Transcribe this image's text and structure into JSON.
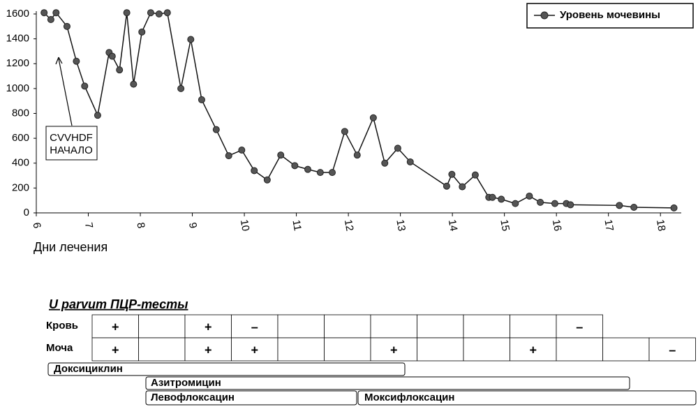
{
  "chart_data": {
    "type": "line",
    "x_label": "Дни лечения",
    "x": [
      6.15,
      6.28,
      6.38,
      6.59,
      6.77,
      6.93,
      7.18,
      7.4,
      7.46,
      7.6,
      7.74,
      7.87,
      8.03,
      8.2,
      8.36,
      8.52,
      8.78,
      8.97,
      9.18,
      9.46,
      9.7,
      9.95,
      10.19,
      10.44,
      10.7,
      10.97,
      11.22,
      11.46,
      11.69,
      11.93,
      12.17,
      12.48,
      12.7,
      12.95,
      13.19,
      13.89,
      13.99,
      14.19,
      14.44,
      14.7,
      14.77,
      14.94,
      15.21,
      15.48,
      15.69,
      15.97,
      16.19,
      16.27,
      17.21,
      17.49,
      18.26
    ],
    "series": [
      {
        "name": "Уровень мочевины",
        "color": "#555555",
        "values": [
          1610,
          1555,
          1610,
          1500,
          1220,
          1020,
          785,
          1290,
          1260,
          1150,
          1610,
          1035,
          1455,
          1610,
          1600,
          1610,
          1000,
          1395,
          910,
          670,
          460,
          505,
          340,
          265,
          465,
          380,
          350,
          325,
          325,
          655,
          465,
          765,
          400,
          520,
          410,
          215,
          310,
          210,
          305,
          125,
          125,
          110,
          75,
          135,
          85,
          75,
          75,
          65,
          60,
          45,
          40
        ]
      }
    ],
    "xlim": [
      6,
      18.4
    ],
    "xticks": [
      6,
      7,
      8,
      9,
      10,
      11,
      12,
      13,
      14,
      15,
      16,
      17,
      18
    ],
    "ylim": [
      0,
      1600
    ],
    "yticks": [
      0,
      200,
      400,
      600,
      800,
      1000,
      1200,
      1400,
      1600
    ],
    "grid": false,
    "legend": "upper right",
    "annotation": [
      "CVVHDF",
      "НАЧАЛО"
    ]
  },
  "pcr_tests": {
    "title": "U parvum ПЦР-тесты",
    "rows": [
      {
        "label": "Кровь",
        "cells": [
          "+",
          null,
          "+",
          "–",
          null,
          null,
          null,
          null,
          null,
          null,
          "–"
        ]
      },
      {
        "label": "Моча",
        "cells": [
          "+",
          null,
          "+",
          "+",
          null,
          null,
          "+",
          null,
          null,
          "+",
          null,
          null,
          "–"
        ]
      }
    ]
  },
  "drugs": [
    "Доксициклин",
    "Азитромицин",
    "Левофлоксацин",
    "Моксифлоксацин"
  ]
}
